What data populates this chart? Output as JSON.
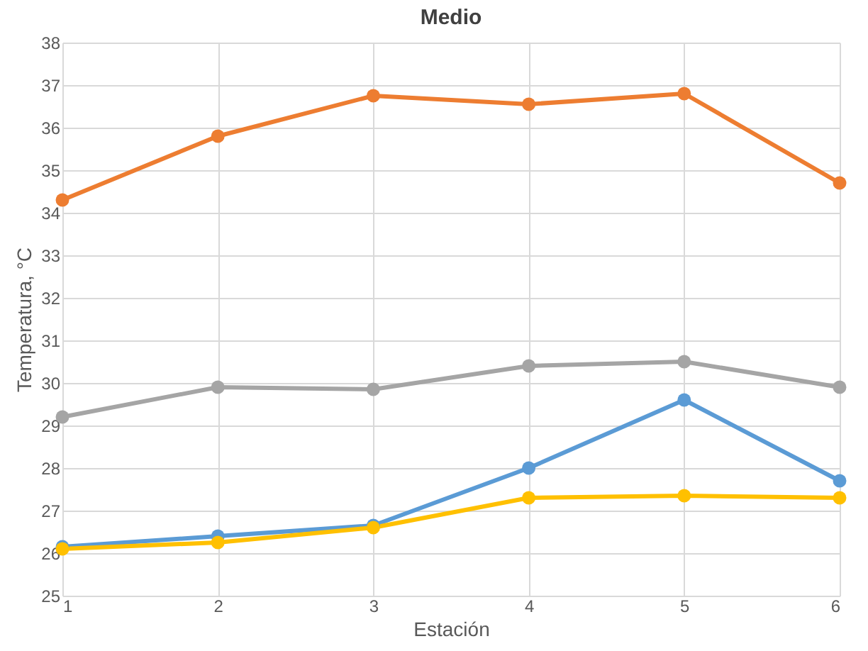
{
  "chart_data": {
    "type": "line",
    "title": "Medio",
    "xlabel": "Estación",
    "ylabel": "Temperatura, °C",
    "x": [
      1,
      2,
      3,
      4,
      5,
      6
    ],
    "series": [
      {
        "color": "#ed7d31",
        "values": [
          34.3,
          35.8,
          36.75,
          36.55,
          36.8,
          34.7
        ]
      },
      {
        "color": "#a5a5a5",
        "values": [
          29.2,
          29.9,
          29.85,
          30.4,
          30.5,
          29.9
        ]
      },
      {
        "color": "#5b9bd5",
        "values": [
          26.15,
          26.4,
          26.65,
          28.0,
          29.6,
          27.7
        ]
      },
      {
        "color": "#ffc000",
        "values": [
          26.1,
          26.25,
          26.6,
          27.3,
          27.35,
          27.3
        ]
      }
    ],
    "xlim": [
      1,
      6
    ],
    "xticks": [
      1,
      2,
      3,
      4,
      5,
      6
    ],
    "ylim": [
      25,
      38
    ],
    "yticks": [
      25,
      26,
      27,
      28,
      29,
      30,
      31,
      32,
      33,
      34,
      35,
      36,
      37,
      38
    ],
    "grid": true,
    "marker": "circle",
    "line_style": "solid",
    "legend": false
  }
}
